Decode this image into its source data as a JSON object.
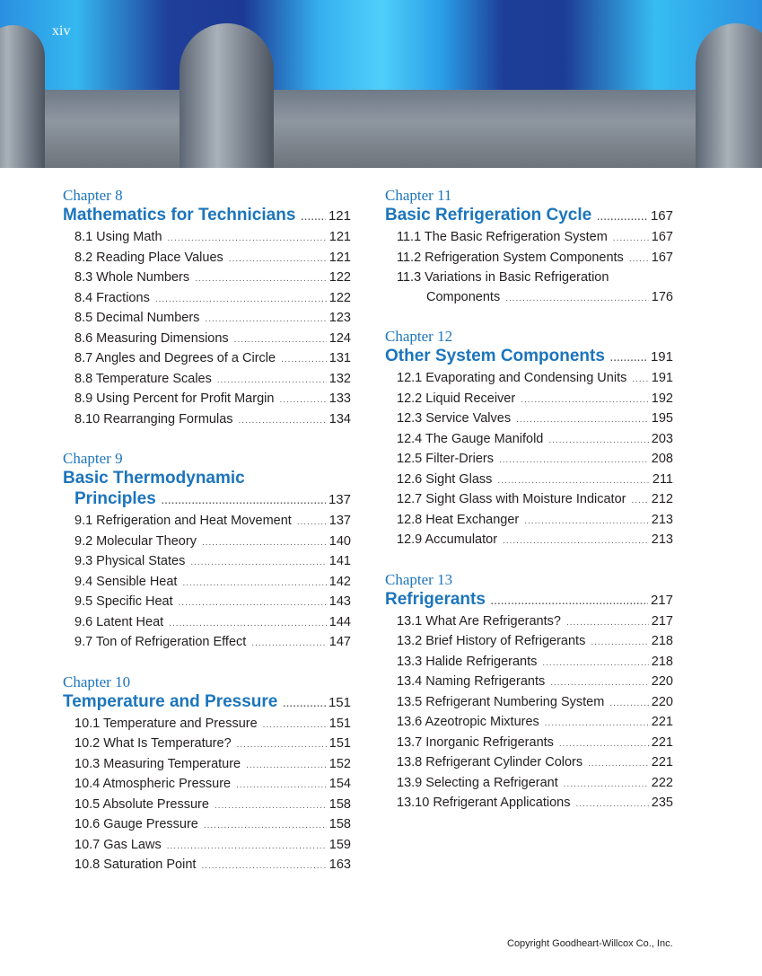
{
  "page_number": "xiv",
  "copyright": "Copyright Goodheart-Willcox Co., Inc.",
  "colors": {
    "accent": "#1c75bc",
    "text": "#231f20"
  },
  "left_column": [
    {
      "label": "Chapter 8",
      "title": "Mathematics for Technicians",
      "page": "121",
      "entries": [
        {
          "text": "8.1 Using Math",
          "page": "121"
        },
        {
          "text": "8.2 Reading Place Values",
          "page": "121"
        },
        {
          "text": "8.3 Whole Numbers",
          "page": "122"
        },
        {
          "text": "8.4 Fractions",
          "page": "122"
        },
        {
          "text": "8.5 Decimal Numbers",
          "page": "123"
        },
        {
          "text": "8.6 Measuring Dimensions",
          "page": "124"
        },
        {
          "text": "8.7 Angles and Degrees of a Circle",
          "page": "131"
        },
        {
          "text": "8.8 Temperature Scales",
          "page": "132"
        },
        {
          "text": "8.9 Using Percent for Profit Margin",
          "page": "133"
        },
        {
          "text": "8.10 Rearranging Formulas",
          "page": "134"
        }
      ]
    },
    {
      "label": "Chapter 9",
      "title": "Basic Thermodynamic",
      "title_cont": "Principles",
      "page": "137",
      "entries": [
        {
          "text": "9.1 Refrigeration and Heat Movement",
          "page": "137"
        },
        {
          "text": "9.2 Molecular Theory",
          "page": "140"
        },
        {
          "text": "9.3 Physical States",
          "page": "141"
        },
        {
          "text": "9.4 Sensible Heat",
          "page": "142"
        },
        {
          "text": "9.5 Specific Heat",
          "page": "143"
        },
        {
          "text": "9.6 Latent Heat",
          "page": "144"
        },
        {
          "text": "9.7 Ton of Refrigeration Effect",
          "page": "147"
        }
      ]
    },
    {
      "label": "Chapter 10",
      "title": "Temperature and Pressure",
      "page": "151",
      "entries": [
        {
          "text": "10.1 Temperature and Pressure",
          "page": "151"
        },
        {
          "text": "10.2 What Is Temperature?",
          "page": "151"
        },
        {
          "text": "10.3 Measuring Temperature",
          "page": "152"
        },
        {
          "text": "10.4 Atmospheric Pressure",
          "page": "154"
        },
        {
          "text": "10.5 Absolute Pressure",
          "page": "158"
        },
        {
          "text": "10.6 Gauge Pressure",
          "page": "158"
        },
        {
          "text": "10.7 Gas Laws",
          "page": "159"
        },
        {
          "text": "10.8 Saturation Point",
          "page": "163"
        }
      ]
    }
  ],
  "right_column": [
    {
      "label": "Chapter 11",
      "title": "Basic Refrigeration Cycle",
      "page": "167",
      "entries": [
        {
          "text": "11.1 The Basic Refrigeration System",
          "page": "167"
        },
        {
          "text": "11.2 Refrigeration System Components",
          "page": "167"
        },
        {
          "text": "11.3 Variations in Basic Refrigeration",
          "text_cont": "Components",
          "page": "176"
        }
      ]
    },
    {
      "label": "Chapter 12",
      "title": "Other System Components",
      "page": "191",
      "entries": [
        {
          "text": "12.1 Evaporating and Condensing Units",
          "page": "191"
        },
        {
          "text": "12.2 Liquid Receiver",
          "page": "192"
        },
        {
          "text": "12.3 Service Valves",
          "page": "195"
        },
        {
          "text": "12.4 The Gauge Manifold",
          "page": "203"
        },
        {
          "text": "12.5 Filter-Driers",
          "page": "208"
        },
        {
          "text": "12.6 Sight Glass",
          "page": "211"
        },
        {
          "text": "12.7 Sight Glass with Moisture Indicator",
          "page": "212"
        },
        {
          "text": "12.8 Heat Exchanger",
          "page": "213"
        },
        {
          "text": "12.9 Accumulator",
          "page": "213"
        }
      ]
    },
    {
      "label": "Chapter 13",
      "title": "Refrigerants",
      "page": "217",
      "entries": [
        {
          "text": "13.1 What Are Refrigerants?",
          "page": "217"
        },
        {
          "text": "13.2 Brief History of Refrigerants",
          "page": "218"
        },
        {
          "text": "13.3 Halide Refrigerants",
          "page": "218"
        },
        {
          "text": "13.4 Naming Refrigerants",
          "page": "220"
        },
        {
          "text": "13.5 Refrigerant Numbering System",
          "page": "220"
        },
        {
          "text": "13.6 Azeotropic Mixtures",
          "page": "221"
        },
        {
          "text": "13.7 Inorganic Refrigerants",
          "page": "221"
        },
        {
          "text": "13.8 Refrigerant Cylinder Colors",
          "page": "221"
        },
        {
          "text": "13.9 Selecting a Refrigerant",
          "page": "222"
        },
        {
          "text": "13.10 Refrigerant Applications",
          "page": "235"
        }
      ]
    }
  ]
}
